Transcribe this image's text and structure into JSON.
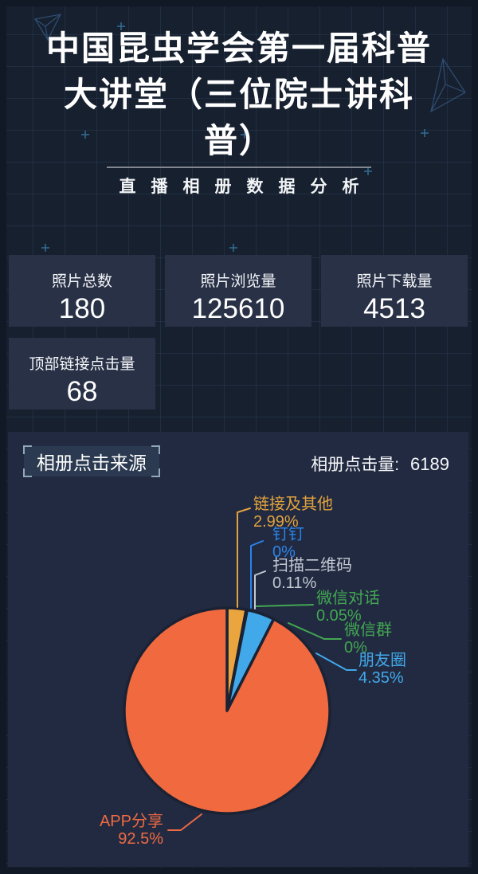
{
  "header": {
    "title": "中国昆虫学会第一届科普大讲堂（三位院士讲科普）",
    "title_lines": [
      "中国昆虫学会第一届科普",
      "大讲堂（三位院士讲科",
      "普）"
    ],
    "subtitle": "直播相册数据分析"
  },
  "stats": [
    {
      "label": "照片总数",
      "value": "180"
    },
    {
      "label": "照片浏览量",
      "value": "125610"
    },
    {
      "label": "照片下载量",
      "value": "4513"
    },
    {
      "label": "顶部链接点击量",
      "value": "68"
    }
  ],
  "chart_data": {
    "type": "pie",
    "title": "相册点击来源",
    "total_label": "相册点击量:",
    "total_value": "6189",
    "direction": "clockwise",
    "start_angle_deg_from_top": 0,
    "legend_position": "callout-labels",
    "slices": [
      {
        "name": "链接及其他",
        "pct_label": "2.99%",
        "value": 2.99,
        "color": "#eaa53e",
        "label_color": "#e2a33d"
      },
      {
        "name": "钉钉",
        "pct_label": "0%",
        "value": 0,
        "color": "#2a84e8",
        "label_color": "#2a84e8"
      },
      {
        "name": "扫描二维码",
        "pct_label": "0.11%",
        "value": 0.11,
        "color": "#c6ccd4",
        "label_color": "#c3c9d2"
      },
      {
        "name": "微信对话",
        "pct_label": "0.05%",
        "value": 0.05,
        "color": "#42a752",
        "label_color": "#42a752"
      },
      {
        "name": "微信群",
        "pct_label": "0%",
        "value": 0,
        "color": "#42a752",
        "label_color": "#42a752"
      },
      {
        "name": "朋友圈",
        "pct_label": "4.35%",
        "value": 4.35,
        "color": "#41a9ea",
        "label_color": "#41a9ea"
      },
      {
        "name": "APP分享",
        "pct_label": "92.5%",
        "value": 92.5,
        "color": "#f0693f",
        "label_color": "#ed6a43"
      }
    ]
  },
  "colors": {
    "page_bg": "#111826",
    "grid_bg": "#17202f",
    "card_bg": "#293147",
    "panel_bg": "#222a41",
    "pie_border": "#1a2234"
  }
}
